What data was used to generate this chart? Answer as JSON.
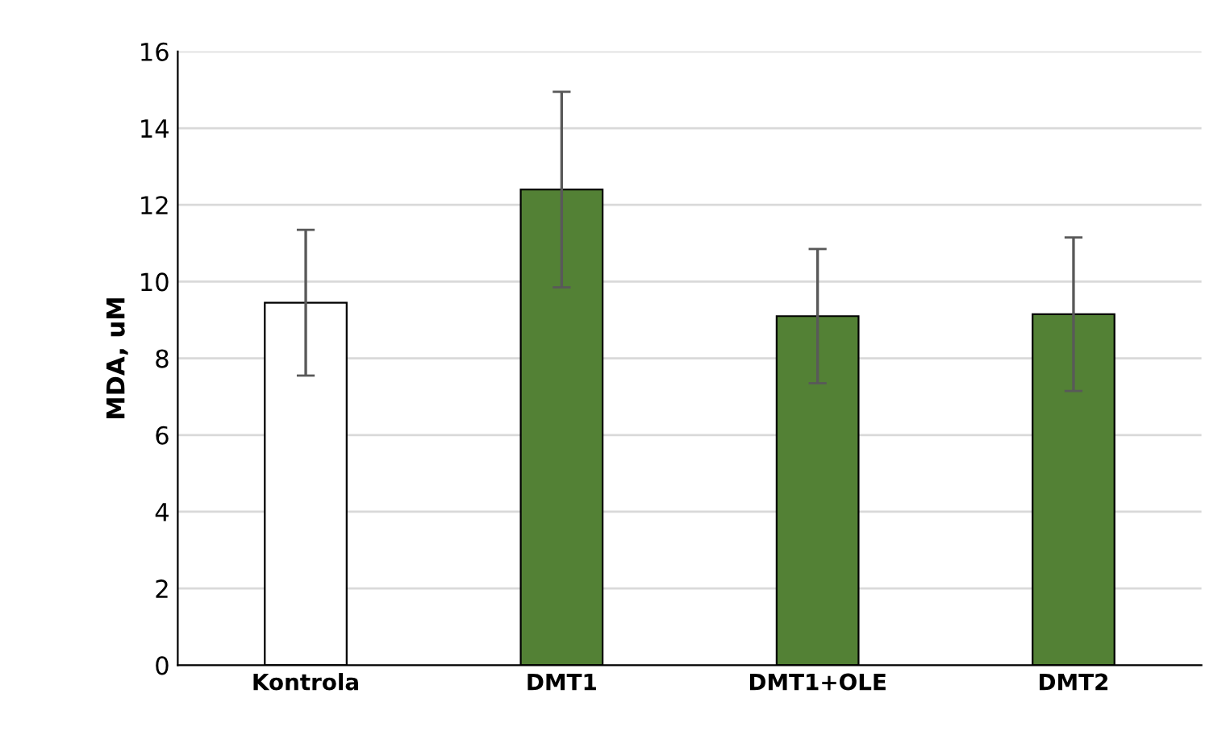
{
  "chart_data": {
    "type": "bar",
    "ylabel": "MDA, uM",
    "categories": [
      "Kontrola",
      "DMT1",
      "DMT1+OLE",
      "DMT2"
    ],
    "values": [
      9.45,
      12.4,
      9.1,
      9.15
    ],
    "errors": [
      1.9,
      2.55,
      1.75,
      2.0
    ],
    "colors": [
      "#ffffff",
      "#538135",
      "#538135",
      "#538135"
    ],
    "ylim": [
      0,
      16
    ],
    "yticks": [
      0,
      2,
      4,
      6,
      8,
      10,
      12,
      14,
      16
    ],
    "grid": "y",
    "legend": false
  }
}
